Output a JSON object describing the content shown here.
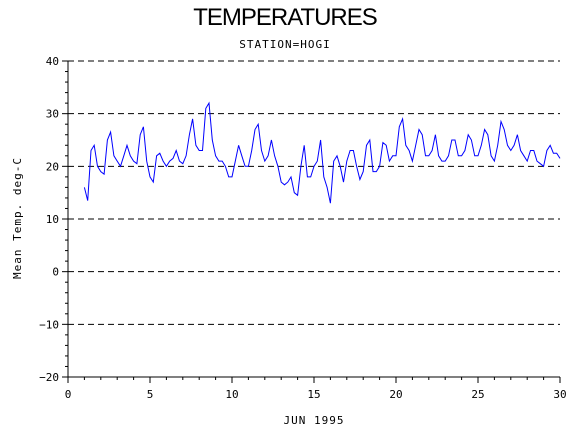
{
  "chart_data": {
    "type": "line",
    "title": "TEMPERATURES",
    "subtitle": "STATION=HOGI",
    "xlabel": "JUN 1995",
    "ylabel": "Mean Temp. deg-C",
    "xlim": [
      0,
      30
    ],
    "ylim": [
      -20,
      40
    ],
    "xticks": [
      0,
      5,
      10,
      15,
      20,
      25,
      30
    ],
    "yticks": [
      -20,
      -10,
      0,
      10,
      20,
      30,
      40
    ],
    "grid": "horizontal dashed",
    "series": [
      {
        "color": "#0000ff",
        "x": [
          1.0,
          1.2,
          1.4,
          1.6,
          1.8,
          2.0,
          2.2,
          2.4,
          2.6,
          2.8,
          3.0,
          3.2,
          3.4,
          3.6,
          3.8,
          4.0,
          4.2,
          4.4,
          4.6,
          4.8,
          5.0,
          5.2,
          5.4,
          5.6,
          5.8,
          6.0,
          6.2,
          6.4,
          6.6,
          6.8,
          7.0,
          7.2,
          7.4,
          7.6,
          7.8,
          8.0,
          8.2,
          8.4,
          8.6,
          8.8,
          9.0,
          9.2,
          9.4,
          9.6,
          9.8,
          10.0,
          10.2,
          10.4,
          10.6,
          10.8,
          11.0,
          11.2,
          11.4,
          11.6,
          11.8,
          12.0,
          12.2,
          12.4,
          12.6,
          12.8,
          13.0,
          13.2,
          13.4,
          13.6,
          13.8,
          14.0,
          14.2,
          14.4,
          14.6,
          14.8,
          15.0,
          15.2,
          15.4,
          15.6,
          15.8,
          16.0,
          16.2,
          16.4,
          16.6,
          16.8,
          17.0,
          17.2,
          17.4,
          17.6,
          17.8,
          18.0,
          18.2,
          18.4,
          18.6,
          18.8,
          19.0,
          19.2,
          19.4,
          19.6,
          19.8,
          20.0,
          20.2,
          20.4,
          20.6,
          20.8,
          21.0,
          21.2,
          21.4,
          21.6,
          21.8,
          22.0,
          22.2,
          22.4,
          22.6,
          22.8,
          23.0,
          23.2,
          23.4,
          23.6,
          23.8,
          24.0,
          24.2,
          24.4,
          24.6,
          24.8,
          25.0,
          25.2,
          25.4,
          25.6,
          25.8,
          26.0,
          26.2,
          26.4,
          26.6,
          26.8,
          27.0,
          27.2,
          27.4,
          27.6,
          27.8,
          28.0,
          28.2,
          28.4,
          28.6,
          28.8,
          29.0,
          29.2,
          29.4,
          29.6,
          29.8,
          30.0
        ],
        "y": [
          16,
          13.5,
          23,
          24,
          20,
          19,
          18.5,
          25,
          26.5,
          22,
          21,
          20,
          22,
          24,
          22,
          21,
          20.5,
          26,
          27.5,
          21,
          18,
          17,
          22,
          22.5,
          21,
          20,
          21,
          21.5,
          23,
          21,
          20.5,
          22,
          26,
          29,
          24,
          23,
          23,
          31,
          32,
          25,
          22,
          21,
          21,
          20,
          18,
          18,
          21,
          24,
          22,
          20,
          20,
          23,
          27,
          28,
          23,
          21,
          22,
          25,
          22,
          20,
          17,
          16.5,
          17,
          18,
          15,
          14.5,
          20,
          24,
          18,
          18,
          20,
          21,
          25,
          18,
          16,
          13,
          21,
          22,
          20,
          17,
          21,
          23,
          23,
          20,
          17.5,
          19,
          24,
          25,
          19,
          19,
          20,
          24.5,
          24,
          21,
          22,
          22,
          27.5,
          29,
          24,
          23,
          21,
          24,
          27,
          26,
          22,
          22,
          23,
          26,
          22,
          21,
          21,
          22,
          25,
          25,
          22,
          22,
          23,
          26,
          25,
          22,
          22,
          24,
          27,
          26,
          22,
          21,
          24,
          28.5,
          27,
          24,
          23,
          24,
          26,
          23,
          22,
          21,
          23,
          23,
          21,
          20.5,
          20,
          23,
          24,
          22.5,
          22.5,
          21.5
        ]
      }
    ]
  }
}
